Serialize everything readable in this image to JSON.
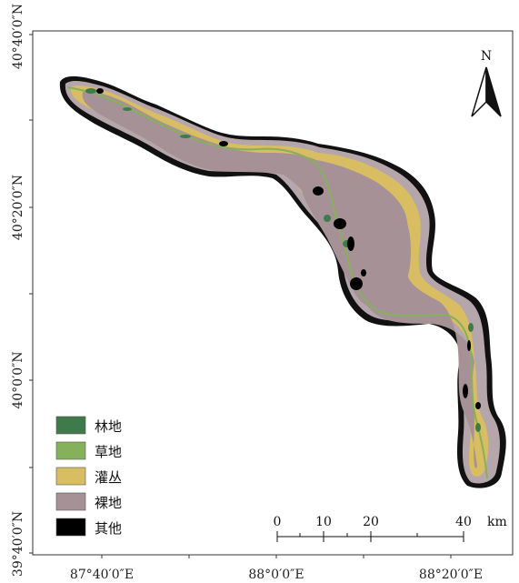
{
  "map": {
    "north_arrow_label": "N",
    "lat_labels": [
      "40°40′0″N",
      "40°20′0″N",
      "40°0′0″N",
      "39°40′0″N"
    ],
    "lon_labels": [
      "87°40′0″E",
      "88°0′0″E",
      "88°20′0″E"
    ],
    "legend": [
      {
        "label": "林地",
        "color": "#3f7a4b"
      },
      {
        "label": "草地",
        "color": "#86b15b"
      },
      {
        "label": "灌丛",
        "color": "#d8bd62"
      },
      {
        "label": "裸地",
        "color": "#a69197"
      },
      {
        "label": "其他",
        "color": "#000000"
      }
    ],
    "scale_bar": {
      "ticks": [
        "0",
        "10",
        "20",
        "40"
      ],
      "unit": "km"
    },
    "colors": {
      "outer_buffer": "#b5a6ab",
      "bare": "#a69197",
      "shrub": "#d8bd62",
      "grass": "#86b15b",
      "forest": "#3f7a4b",
      "other": "#000000"
    }
  }
}
